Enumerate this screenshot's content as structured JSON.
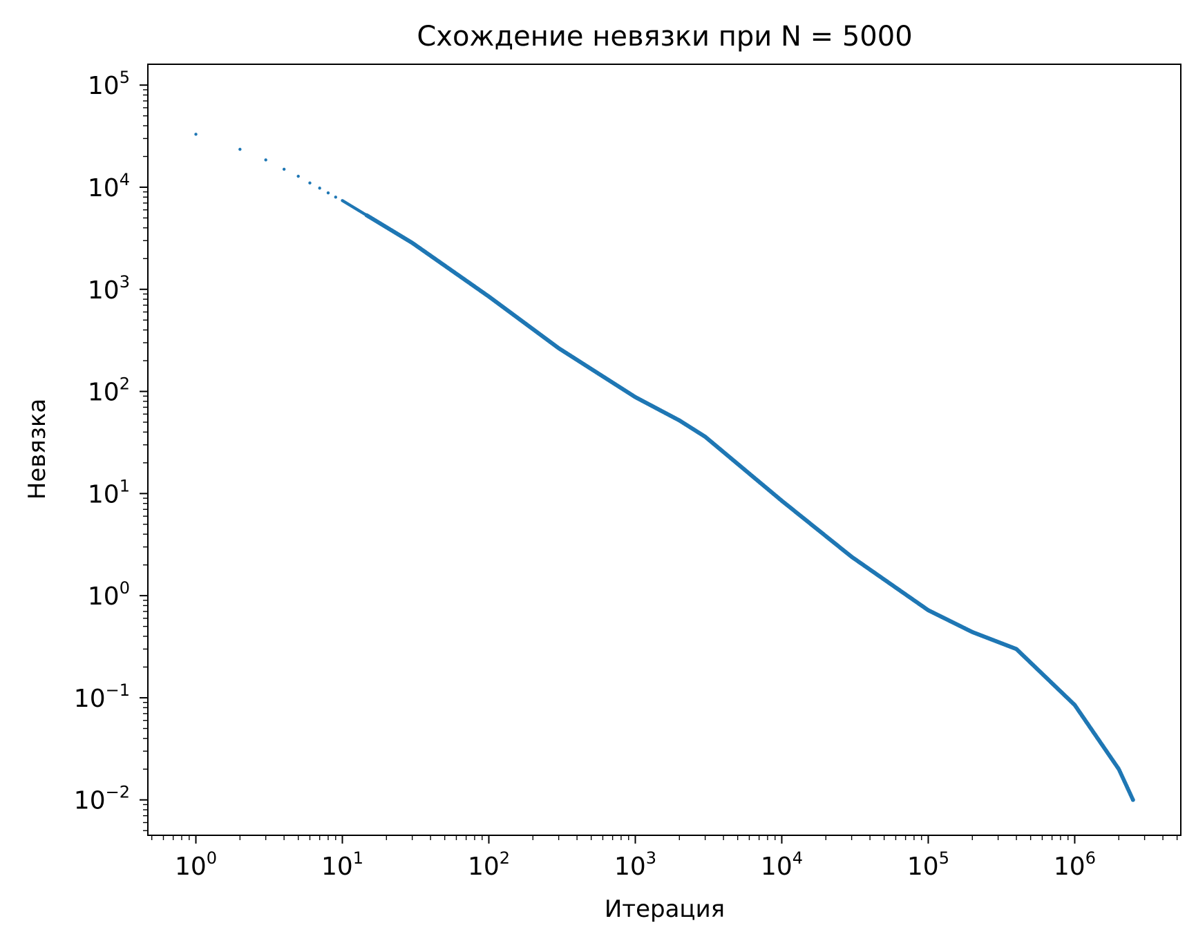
{
  "chart_data": {
    "type": "scatter",
    "title": "Схождение невязки при N = 5000",
    "xlabel": "Итерация",
    "ylabel": "Невязка",
    "xscale": "log",
    "yscale": "log",
    "xlim": [
      0.47,
      5300000
    ],
    "ylim": [
      0.0045,
      160000
    ],
    "x_tick_labels": [
      {
        "base": "10",
        "exp": "0"
      },
      {
        "base": "10",
        "exp": "1"
      },
      {
        "base": "10",
        "exp": "2"
      },
      {
        "base": "10",
        "exp": "3"
      },
      {
        "base": "10",
        "exp": "4"
      },
      {
        "base": "10",
        "exp": "5"
      },
      {
        "base": "10",
        "exp": "6"
      }
    ],
    "y_tick_labels": [
      {
        "base": "10",
        "exp": "5"
      },
      {
        "base": "10",
        "exp": "4"
      },
      {
        "base": "10",
        "exp": "3"
      },
      {
        "base": "10",
        "exp": "2"
      },
      {
        "base": "10",
        "exp": "1"
      },
      {
        "base": "10",
        "exp": "0"
      },
      {
        "base": "10",
        "exp": "−1"
      },
      {
        "base": "10",
        "exp": "−2"
      }
    ],
    "x_ticks": [
      1,
      10,
      100,
      1000,
      10000,
      100000,
      1000000
    ],
    "y_ticks": [
      100000,
      10000,
      1000,
      100,
      10,
      1,
      0.1,
      0.01
    ],
    "grid": false,
    "legend": "none",
    "marker": "dot",
    "color": "#1f77b4",
    "series": [
      {
        "points": [
          [
            1,
            33000
          ],
          [
            2,
            23500
          ],
          [
            3,
            18500
          ],
          [
            4,
            15000
          ],
          [
            5,
            12800
          ],
          [
            6,
            11000
          ],
          [
            7,
            9800
          ],
          [
            8,
            8800
          ],
          [
            9,
            8000
          ],
          [
            10,
            7400
          ],
          [
            30,
            2850
          ],
          [
            100,
            850
          ],
          [
            300,
            265
          ],
          [
            1000,
            88
          ],
          [
            2000,
            52
          ],
          [
            3000,
            36
          ],
          [
            10000,
            8.5
          ],
          [
            30000,
            2.4
          ],
          [
            100000,
            0.72
          ],
          [
            200000,
            0.44
          ],
          [
            400000,
            0.3
          ],
          [
            1000000,
            0.085
          ],
          [
            2000000,
            0.02
          ],
          [
            2500000,
            0.01
          ]
        ]
      }
    ]
  }
}
